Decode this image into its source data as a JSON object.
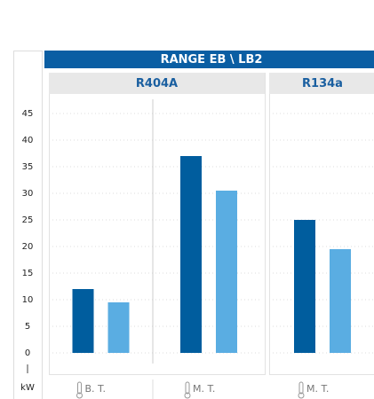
{
  "chart_data": {
    "type": "bar",
    "title": "RANGE EB \\ LB2",
    "y_label": "kW",
    "ylim": [
      0,
      48
    ],
    "yticks": [
      0,
      5,
      10,
      15,
      20,
      25,
      30,
      35,
      40,
      45
    ],
    "grid": true,
    "panels": [
      {
        "title": "R404A",
        "categories": [
          "B. T.",
          "M. T."
        ],
        "series": [
          {
            "color": "#005d9e",
            "values": [
              12,
              37
            ]
          },
          {
            "color": "#5aade2",
            "values": [
              9.5,
              30.5
            ]
          }
        ]
      },
      {
        "title": "R134a",
        "categories": [
          "M. T."
        ],
        "series": [
          {
            "color": "#005d9e",
            "values": [
              25
            ]
          },
          {
            "color": "#5aade2",
            "values": [
              19.5
            ]
          }
        ]
      }
    ]
  }
}
